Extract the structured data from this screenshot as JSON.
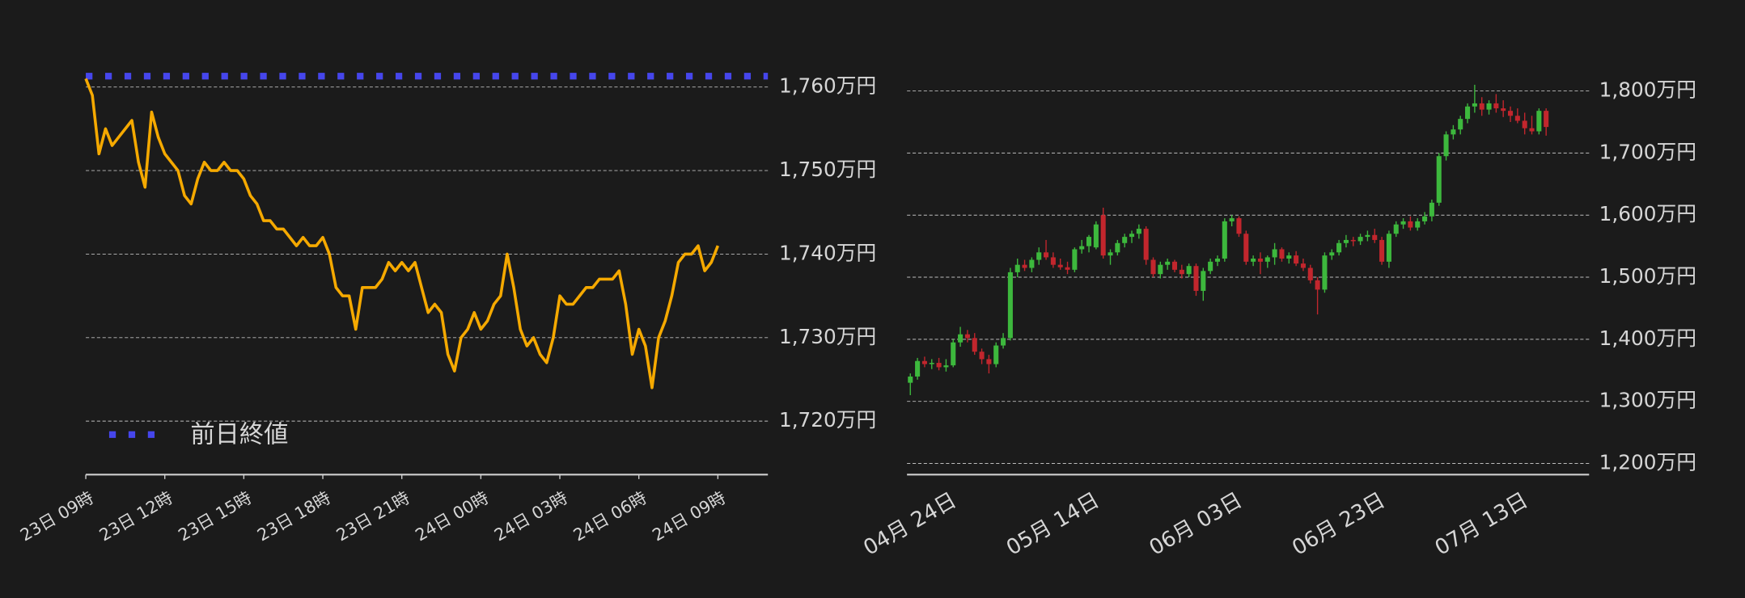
{
  "chart_data": [
    {
      "type": "line",
      "x": [
        0,
        0.25,
        0.5,
        0.75,
        1,
        1.25,
        1.5,
        1.75,
        2,
        2.25,
        2.5,
        2.75,
        3,
        3.25,
        3.5,
        3.75,
        4,
        4.25,
        4.5,
        4.75,
        5,
        5.25,
        5.5,
        5.75,
        6,
        6.25,
        6.5,
        6.75,
        7,
        7.25,
        7.5,
        7.75,
        8,
        8.25,
        8.5,
        8.75,
        9,
        9.25,
        9.5,
        9.75,
        10,
        10.25,
        10.5,
        10.75,
        11,
        11.25,
        11.5,
        11.75,
        12,
        12.25,
        12.5,
        12.75,
        13,
        13.25,
        13.5,
        13.75,
        14,
        14.25,
        14.5,
        14.75,
        15,
        15.25,
        15.5,
        15.75,
        16,
        16.25,
        16.5,
        16.75,
        17,
        17.25,
        17.5,
        17.75,
        18,
        18.25,
        18.5,
        18.75,
        19,
        19.25,
        19.5,
        19.75,
        20,
        20.25,
        20.5,
        20.75,
        21,
        21.25,
        21.5,
        21.75,
        22,
        22.25,
        22.5,
        22.75,
        23,
        23.25,
        23.5,
        23.75,
        24
      ],
      "values": [
        1761,
        1759,
        1752,
        1755,
        1753,
        1754,
        1755,
        1756,
        1751,
        1748,
        1757,
        1754,
        1752,
        1751,
        1750,
        1747,
        1746,
        1749,
        1751,
        1750,
        1750,
        1751,
        1750,
        1750,
        1749,
        1747,
        1746,
        1744,
        1744,
        1743,
        1743,
        1742,
        1741,
        1742,
        1741,
        1741,
        1742,
        1740,
        1736,
        1735,
        1735,
        1731,
        1736,
        1736,
        1736,
        1737,
        1739,
        1738,
        1739,
        1738,
        1739,
        1736,
        1733,
        1734,
        1733,
        1728,
        1726,
        1730,
        1731,
        1733,
        1731,
        1732,
        1734,
        1735,
        1740,
        1736,
        1731,
        1729,
        1730,
        1728,
        1727,
        1730,
        1735,
        1734,
        1734,
        1735,
        1736,
        1736,
        1737,
        1737,
        1737,
        1738,
        1734,
        1728,
        1731,
        1729,
        1724,
        1730,
        1732,
        1735,
        1739,
        1740,
        1740,
        1741,
        1738,
        1739,
        1741
      ],
      "color": "#f5a900",
      "reference_lines": [
        {
          "name": "前日終値",
          "value": 1761.3,
          "color": "#4646ec"
        }
      ],
      "legend": "lower left",
      "xlim": [
        0,
        25.9
      ],
      "xticks": [
        {
          "value": 0,
          "label": "23日 09時"
        },
        {
          "value": 3,
          "label": "23日 12時"
        },
        {
          "value": 6,
          "label": "23日 15時"
        },
        {
          "value": 9,
          "label": "23日 18時"
        },
        {
          "value": 12,
          "label": "23日 21時"
        },
        {
          "value": 15,
          "label": "24日 00時"
        },
        {
          "value": 18,
          "label": "24日 03時"
        },
        {
          "value": 21,
          "label": "24日 06時"
        },
        {
          "value": 24,
          "label": "24日 09時"
        }
      ],
      "ylim": [
        1713.6,
        1762.5
      ],
      "yticks": [
        {
          "value": 1720,
          "label": "1,720万円"
        },
        {
          "value": 1730,
          "label": "1,730万円"
        },
        {
          "value": 1740,
          "label": "1,740万円"
        },
        {
          "value": 1750,
          "label": "1,750万円"
        },
        {
          "value": 1760,
          "label": "1,760万円"
        }
      ],
      "grid": true
    },
    {
      "type": "candlestick",
      "categories": [
        "04月 24日",
        null,
        null,
        null,
        null,
        null,
        null,
        null,
        null,
        null,
        null,
        null,
        null,
        null,
        null,
        null,
        null,
        null,
        null,
        null,
        "05月 14日",
        null,
        null,
        null,
        null,
        null,
        null,
        null,
        null,
        null,
        null,
        null,
        null,
        null,
        null,
        null,
        null,
        null,
        null,
        null,
        "06月 03日",
        null,
        null,
        null,
        null,
        null,
        null,
        null,
        null,
        null,
        null,
        null,
        null,
        null,
        null,
        null,
        null,
        null,
        null,
        null,
        "06月 23日",
        null,
        null,
        null,
        null,
        null,
        null,
        null,
        null,
        null,
        null,
        null,
        null,
        null,
        null,
        null,
        null,
        null,
        null,
        null,
        "07月 13日",
        null,
        null,
        null,
        null,
        null,
        null,
        null,
        null,
        null
      ],
      "ohlc": [
        [
          1330,
          1345,
          1310,
          1340
        ],
        [
          1340,
          1370,
          1335,
          1365
        ],
        [
          1365,
          1372,
          1355,
          1360
        ],
        [
          1360,
          1368,
          1352,
          1362
        ],
        [
          1362,
          1370,
          1350,
          1355
        ],
        [
          1355,
          1368,
          1348,
          1358
        ],
        [
          1358,
          1400,
          1355,
          1395
        ],
        [
          1395,
          1420,
          1388,
          1408
        ],
        [
          1408,
          1415,
          1395,
          1402
        ],
        [
          1402,
          1410,
          1375,
          1380
        ],
        [
          1380,
          1385,
          1360,
          1368
        ],
        [
          1368,
          1375,
          1345,
          1360
        ],
        [
          1360,
          1395,
          1355,
          1390
        ],
        [
          1390,
          1410,
          1385,
          1402
        ],
        [
          1402,
          1515,
          1398,
          1508
        ],
        [
          1508,
          1530,
          1500,
          1520
        ],
        [
          1520,
          1528,
          1510,
          1515
        ],
        [
          1515,
          1532,
          1508,
          1528
        ],
        [
          1528,
          1548,
          1520,
          1540
        ],
        [
          1540,
          1560,
          1528,
          1532
        ],
        [
          1532,
          1540,
          1515,
          1520
        ],
        [
          1520,
          1530,
          1512,
          1516
        ],
        [
          1516,
          1525,
          1505,
          1512
        ],
        [
          1512,
          1548,
          1508,
          1545
        ],
        [
          1545,
          1560,
          1538,
          1550
        ],
        [
          1550,
          1568,
          1540,
          1565
        ],
        [
          1548,
          1590,
          1545,
          1585
        ],
        [
          1600,
          1612,
          1530,
          1535
        ],
        [
          1535,
          1545,
          1520,
          1540
        ],
        [
          1540,
          1560,
          1535,
          1555
        ],
        [
          1555,
          1570,
          1548,
          1565
        ],
        [
          1565,
          1575,
          1555,
          1570
        ],
        [
          1570,
          1585,
          1562,
          1578
        ],
        [
          1578,
          1582,
          1520,
          1528
        ],
        [
          1528,
          1532,
          1500,
          1505
        ],
        [
          1505,
          1525,
          1498,
          1520
        ],
        [
          1520,
          1530,
          1512,
          1525
        ],
        [
          1525,
          1528,
          1508,
          1512
        ],
        [
          1512,
          1520,
          1498,
          1505
        ],
        [
          1505,
          1522,
          1500,
          1518
        ],
        [
          1518,
          1522,
          1470,
          1478
        ],
        [
          1478,
          1515,
          1462,
          1510
        ],
        [
          1510,
          1530,
          1505,
          1525
        ],
        [
          1525,
          1535,
          1518,
          1530
        ],
        [
          1530,
          1595,
          1525,
          1590
        ],
        [
          1590,
          1600,
          1582,
          1595
        ],
        [
          1595,
          1598,
          1565,
          1570
        ],
        [
          1570,
          1575,
          1520,
          1525
        ],
        [
          1525,
          1535,
          1518,
          1530
        ],
        [
          1530,
          1540,
          1505,
          1525
        ],
        [
          1525,
          1535,
          1515,
          1532
        ],
        [
          1532,
          1555,
          1520,
          1545
        ],
        [
          1545,
          1548,
          1525,
          1530
        ],
        [
          1530,
          1540,
          1522,
          1535
        ],
        [
          1535,
          1542,
          1518,
          1522
        ],
        [
          1522,
          1530,
          1510,
          1515
        ],
        [
          1515,
          1520,
          1490,
          1495
        ],
        [
          1495,
          1500,
          1440,
          1480
        ],
        [
          1480,
          1540,
          1475,
          1535
        ],
        [
          1535,
          1545,
          1528,
          1540
        ],
        [
          1540,
          1560,
          1535,
          1555
        ],
        [
          1555,
          1568,
          1548,
          1560
        ],
        [
          1560,
          1565,
          1550,
          1558
        ],
        [
          1558,
          1570,
          1552,
          1565
        ],
        [
          1565,
          1575,
          1558,
          1568
        ],
        [
          1568,
          1578,
          1555,
          1560
        ],
        [
          1560,
          1565,
          1520,
          1525
        ],
        [
          1525,
          1575,
          1515,
          1570
        ],
        [
          1570,
          1590,
          1565,
          1585
        ],
        [
          1585,
          1595,
          1578,
          1590
        ],
        [
          1590,
          1598,
          1575,
          1580
        ],
        [
          1580,
          1595,
          1575,
          1590
        ],
        [
          1590,
          1605,
          1585,
          1598
        ],
        [
          1598,
          1625,
          1590,
          1620
        ],
        [
          1620,
          1700,
          1615,
          1695
        ],
        [
          1695,
          1735,
          1688,
          1730
        ],
        [
          1730,
          1745,
          1722,
          1738
        ],
        [
          1738,
          1760,
          1730,
          1755
        ],
        [
          1755,
          1780,
          1748,
          1775
        ],
        [
          1775,
          1810,
          1765,
          1780
        ],
        [
          1780,
          1790,
          1760,
          1770
        ],
        [
          1770,
          1785,
          1762,
          1780
        ],
        [
          1780,
          1795,
          1765,
          1772
        ],
        [
          1772,
          1785,
          1758,
          1768
        ],
        [
          1768,
          1775,
          1750,
          1760
        ],
        [
          1760,
          1772,
          1748,
          1752
        ],
        [
          1752,
          1765,
          1730,
          1740
        ],
        [
          1740,
          1760,
          1730,
          1735
        ],
        [
          1735,
          1772,
          1730,
          1768
        ],
        [
          1768,
          1772,
          1728,
          1742
        ]
      ],
      "up_color": "#3db83d",
      "down_color": "#c2262d",
      "ylim": [
        1182,
        1840
      ],
      "yticks": [
        {
          "value": 1200,
          "label": "1,200万円"
        },
        {
          "value": 1300,
          "label": "1,300万円"
        },
        {
          "value": 1400,
          "label": "1,400万円"
        },
        {
          "value": 1500,
          "label": "1,500万円"
        },
        {
          "value": 1600,
          "label": "1,600万円"
        },
        {
          "value": 1700,
          "label": "1,700万円"
        },
        {
          "value": 1800,
          "label": "1,800万円"
        }
      ],
      "grid": true
    }
  ]
}
